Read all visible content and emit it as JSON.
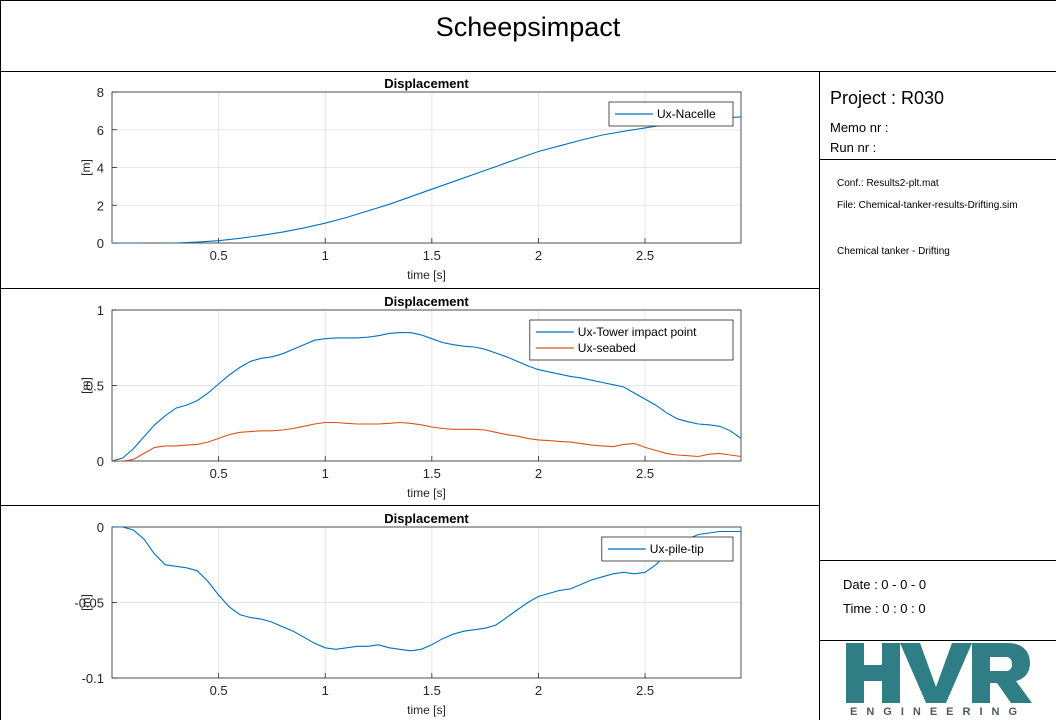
{
  "header": {
    "title": "Scheepsimpact"
  },
  "sidebar": {
    "project": "Project : R030",
    "memo": "Memo nr :",
    "run": "Run nr    :",
    "conf": "Conf.: Results2-plt.mat",
    "file": "File: Chemical-tanker-results-Drifting.sim",
    "description": "Chemical tanker - Drifting",
    "date": "Date : 0 - 0 - 0",
    "time": "Time : 0 : 0 : 0"
  },
  "logo": {
    "letters": "HVR",
    "subtitle": "ENGINEERING",
    "color": "#2f7e86"
  },
  "colors": {
    "series1": "#0072BD",
    "series2": "#D95319",
    "grid": "#e6e6e6"
  },
  "chart_data": [
    {
      "type": "line",
      "title": "Displacement",
      "xlabel": "time [s]",
      "ylabel": "[m]",
      "xlim": [
        0,
        2.95
      ],
      "ylim": [
        0,
        8
      ],
      "xticks": [
        0.5,
        1,
        1.5,
        2,
        2.5
      ],
      "yticks": [
        0,
        2,
        4,
        6,
        8
      ],
      "grid": true,
      "legend_position": "top-right",
      "series": [
        {
          "name": "Ux-Nacelle",
          "color": "#0072BD",
          "x": [
            0,
            0.1,
            0.2,
            0.3,
            0.4,
            0.5,
            0.6,
            0.7,
            0.8,
            0.9,
            1.0,
            1.1,
            1.2,
            1.3,
            1.4,
            1.5,
            1.6,
            1.7,
            1.8,
            1.9,
            2.0,
            2.1,
            2.2,
            2.3,
            2.4,
            2.5,
            2.6,
            2.7,
            2.8,
            2.9,
            2.95
          ],
          "y": [
            0,
            0,
            -0.03,
            0,
            0.05,
            0.12,
            0.25,
            0.4,
            0.58,
            0.8,
            1.05,
            1.35,
            1.7,
            2.05,
            2.45,
            2.85,
            3.25,
            3.65,
            4.05,
            4.45,
            4.85,
            5.15,
            5.45,
            5.72,
            5.92,
            6.1,
            6.28,
            6.45,
            6.58,
            6.65,
            6.68
          ]
        }
      ]
    },
    {
      "type": "line",
      "title": "Displacement",
      "xlabel": "time [s]",
      "ylabel": "[m]",
      "xlim": [
        0,
        2.95
      ],
      "ylim": [
        0,
        1
      ],
      "xticks": [
        0.5,
        1,
        1.5,
        2,
        2.5
      ],
      "yticks": [
        0,
        0.5,
        1
      ],
      "grid": true,
      "legend_position": "top-right",
      "series": [
        {
          "name": "Ux-Tower impact point",
          "color": "#0072BD",
          "x": [
            0,
            0.05,
            0.1,
            0.15,
            0.2,
            0.25,
            0.3,
            0.35,
            0.4,
            0.45,
            0.5,
            0.55,
            0.6,
            0.65,
            0.7,
            0.75,
            0.8,
            0.85,
            0.9,
            0.95,
            1.0,
            1.05,
            1.1,
            1.15,
            1.2,
            1.25,
            1.3,
            1.35,
            1.4,
            1.45,
            1.5,
            1.55,
            1.6,
            1.65,
            1.7,
            1.75,
            1.8,
            1.85,
            1.9,
            1.95,
            2.0,
            2.05,
            2.1,
            2.15,
            2.2,
            2.25,
            2.3,
            2.35,
            2.4,
            2.45,
            2.5,
            2.55,
            2.6,
            2.65,
            2.7,
            2.75,
            2.8,
            2.85,
            2.9,
            2.95
          ],
          "y": [
            0,
            0.02,
            0.08,
            0.16,
            0.24,
            0.3,
            0.35,
            0.37,
            0.4,
            0.45,
            0.51,
            0.57,
            0.62,
            0.66,
            0.68,
            0.69,
            0.71,
            0.74,
            0.77,
            0.8,
            0.81,
            0.815,
            0.815,
            0.815,
            0.82,
            0.83,
            0.845,
            0.85,
            0.85,
            0.835,
            0.81,
            0.785,
            0.77,
            0.76,
            0.755,
            0.74,
            0.715,
            0.69,
            0.66,
            0.63,
            0.605,
            0.59,
            0.575,
            0.56,
            0.55,
            0.535,
            0.52,
            0.505,
            0.49,
            0.45,
            0.41,
            0.37,
            0.32,
            0.28,
            0.26,
            0.245,
            0.24,
            0.23,
            0.2,
            0.15
          ]
        },
        {
          "name": "Ux-seabed",
          "color": "#D95319",
          "x": [
            0,
            0.05,
            0.1,
            0.15,
            0.2,
            0.25,
            0.3,
            0.35,
            0.4,
            0.45,
            0.5,
            0.55,
            0.6,
            0.65,
            0.7,
            0.75,
            0.8,
            0.85,
            0.9,
            0.95,
            1.0,
            1.05,
            1.1,
            1.15,
            1.2,
            1.25,
            1.3,
            1.35,
            1.4,
            1.45,
            1.5,
            1.55,
            1.6,
            1.65,
            1.7,
            1.75,
            1.8,
            1.85,
            1.9,
            1.95,
            2.0,
            2.05,
            2.1,
            2.15,
            2.2,
            2.25,
            2.3,
            2.35,
            2.4,
            2.45,
            2.5,
            2.55,
            2.6,
            2.65,
            2.7,
            2.75,
            2.8,
            2.85,
            2.9,
            2.95
          ],
          "y": [
            0,
            0,
            0.01,
            0.05,
            0.09,
            0.1,
            0.1,
            0.105,
            0.11,
            0.125,
            0.15,
            0.175,
            0.19,
            0.195,
            0.2,
            0.2,
            0.205,
            0.215,
            0.23,
            0.245,
            0.255,
            0.255,
            0.25,
            0.245,
            0.245,
            0.245,
            0.25,
            0.255,
            0.25,
            0.24,
            0.225,
            0.215,
            0.21,
            0.21,
            0.21,
            0.205,
            0.19,
            0.175,
            0.165,
            0.15,
            0.14,
            0.135,
            0.13,
            0.125,
            0.115,
            0.105,
            0.1,
            0.095,
            0.11,
            0.115,
            0.09,
            0.07,
            0.05,
            0.04,
            0.035,
            0.03,
            0.045,
            0.05,
            0.04,
            0.03
          ]
        }
      ]
    },
    {
      "type": "line",
      "title": "Displacement",
      "xlabel": "time [s]",
      "ylabel": "[m]",
      "xlim": [
        0,
        2.95
      ],
      "ylim": [
        -0.1,
        0
      ],
      "xticks": [
        0.5,
        1,
        1.5,
        2,
        2.5
      ],
      "yticks": [
        -0.1,
        -0.05,
        0
      ],
      "grid": true,
      "legend_position": "top-right",
      "series": [
        {
          "name": "Ux-pile-tip",
          "color": "#0072BD",
          "x": [
            0,
            0.05,
            0.1,
            0.15,
            0.2,
            0.25,
            0.3,
            0.35,
            0.4,
            0.45,
            0.5,
            0.55,
            0.6,
            0.65,
            0.7,
            0.75,
            0.8,
            0.85,
            0.9,
            0.95,
            1.0,
            1.05,
            1.1,
            1.15,
            1.2,
            1.25,
            1.3,
            1.35,
            1.4,
            1.45,
            1.5,
            1.55,
            1.6,
            1.65,
            1.7,
            1.75,
            1.8,
            1.85,
            1.9,
            1.95,
            2.0,
            2.05,
            2.1,
            2.15,
            2.2,
            2.25,
            2.3,
            2.35,
            2.4,
            2.45,
            2.5,
            2.55,
            2.6,
            2.65,
            2.7,
            2.75,
            2.8,
            2.85,
            2.9,
            2.95
          ],
          "y": [
            0,
            0,
            -0.002,
            -0.008,
            -0.018,
            -0.025,
            -0.026,
            -0.027,
            -0.029,
            -0.036,
            -0.045,
            -0.053,
            -0.058,
            -0.06,
            -0.061,
            -0.063,
            -0.066,
            -0.069,
            -0.073,
            -0.077,
            -0.08,
            -0.081,
            -0.08,
            -0.079,
            -0.079,
            -0.078,
            -0.08,
            -0.081,
            -0.082,
            -0.081,
            -0.078,
            -0.074,
            -0.071,
            -0.069,
            -0.068,
            -0.067,
            -0.065,
            -0.06,
            -0.055,
            -0.05,
            -0.046,
            -0.044,
            -0.042,
            -0.041,
            -0.038,
            -0.035,
            -0.033,
            -0.031,
            -0.03,
            -0.031,
            -0.03,
            -0.025,
            -0.018,
            -0.012,
            -0.008,
            -0.005,
            -0.004,
            -0.003,
            -0.003,
            -0.003
          ]
        }
      ]
    }
  ]
}
